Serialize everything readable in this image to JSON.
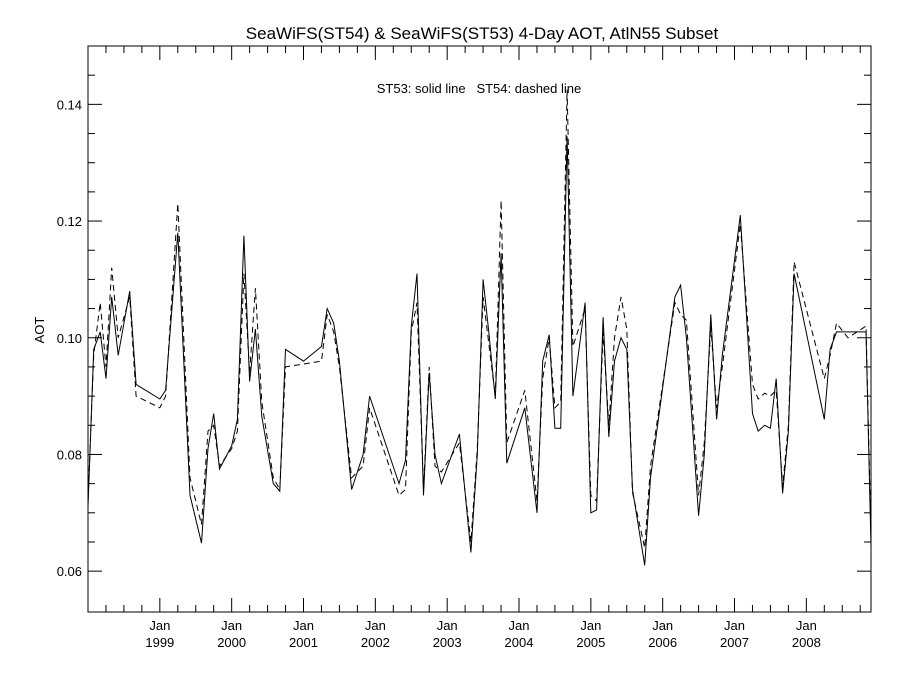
{
  "chart_data": {
    "type": "line",
    "title": "SeaWiFS(ST54) & SeaWiFS(ST53) 4-Day AOT, AtlN55 Subset",
    "xlabel": "",
    "ylabel": "AOT",
    "annotation": "ST53: solid line   ST54: dashed line",
    "xlim": [
      1998.0,
      2008.9
    ],
    "ylim": [
      0.053,
      0.15
    ],
    "y_ticks": [
      0.06,
      0.08,
      0.1,
      0.12,
      0.14
    ],
    "y_tick_labels": [
      "0.06",
      "0.08",
      "0.10",
      "0.12",
      "0.14"
    ],
    "x_ticks": [
      {
        "month": "Jan",
        "year": "1999",
        "x": 1999.0
      },
      {
        "month": "Jan",
        "year": "2000",
        "x": 2000.0
      },
      {
        "month": "Jan",
        "year": "2001",
        "x": 2001.0
      },
      {
        "month": "Jan",
        "year": "2002",
        "x": 2002.0
      },
      {
        "month": "Jan",
        "year": "2003",
        "x": 2003.0
      },
      {
        "month": "Jan",
        "year": "2004",
        "x": 2004.0
      },
      {
        "month": "Jan",
        "year": "2005",
        "x": 2005.0
      },
      {
        "month": "Jan",
        "year": "2006",
        "x": 2006.0
      },
      {
        "month": "Jan",
        "year": "2007",
        "x": 2007.0
      },
      {
        "month": "Jan",
        "year": "2008",
        "x": 2008.0
      }
    ],
    "series": [
      {
        "name": "ST53",
        "style": "solid",
        "x": [
          1998.0,
          1998.08,
          1998.17,
          1998.25,
          1998.33,
          1998.42,
          1998.58,
          1998.67,
          1999.0,
          1999.08,
          1999.25,
          1999.42,
          1999.58,
          1999.67,
          1999.75,
          1999.83,
          2000.0,
          2000.08,
          2000.17,
          2000.25,
          2000.33,
          2000.42,
          2000.58,
          2000.67,
          2000.75,
          2001.0,
          2001.25,
          2001.33,
          2001.42,
          2001.5,
          2001.67,
          2001.83,
          2001.92,
          2002.33,
          2002.42,
          2002.5,
          2002.58,
          2002.67,
          2002.75,
          2002.83,
          2002.92,
          2003.17,
          2003.33,
          2003.42,
          2003.5,
          2003.58,
          2003.67,
          2003.75,
          2003.83,
          2004.08,
          2004.25,
          2004.33,
          2004.42,
          2004.5,
          2004.58,
          2004.67,
          2004.75,
          2004.92,
          2005.0,
          2005.08,
          2005.17,
          2005.25,
          2005.33,
          2005.42,
          2005.5,
          2005.58,
          2005.75,
          2005.83,
          2006.17,
          2006.25,
          2006.33,
          2006.5,
          2006.58,
          2006.67,
          2006.75,
          2006.83,
          2007.08,
          2007.25,
          2007.33,
          2007.42,
          2007.5,
          2007.58,
          2007.67,
          2007.75,
          2007.83,
          2008.25,
          2008.33,
          2008.42,
          2008.58,
          2008.83,
          2008.9
        ],
        "y": [
          0.071,
          0.098,
          0.101,
          0.093,
          0.107,
          0.097,
          0.108,
          0.092,
          0.0895,
          0.091,
          0.118,
          0.073,
          0.0648,
          0.081,
          0.087,
          0.0775,
          0.0815,
          0.086,
          0.1175,
          0.0925,
          0.1015,
          0.0865,
          0.075,
          0.0737,
          0.098,
          0.096,
          0.0985,
          0.105,
          0.1025,
          0.096,
          0.074,
          0.08,
          0.09,
          0.075,
          0.079,
          0.102,
          0.111,
          0.073,
          0.094,
          0.08,
          0.075,
          0.0835,
          0.0632,
          0.08,
          0.11,
          0.101,
          0.0895,
          0.1145,
          0.0785,
          0.088,
          0.07,
          0.096,
          0.1005,
          0.0845,
          0.0845,
          0.1345,
          0.09,
          0.106,
          0.07,
          0.0705,
          0.1035,
          0.083,
          0.096,
          0.1,
          0.098,
          0.074,
          0.061,
          0.076,
          0.107,
          0.109,
          0.1,
          0.0695,
          0.08,
          0.104,
          0.086,
          0.097,
          0.121,
          0.087,
          0.084,
          0.085,
          0.0845,
          0.093,
          0.0733,
          0.084,
          0.111,
          0.086,
          0.098,
          0.101,
          0.101,
          0.101,
          0.064
        ]
      },
      {
        "name": "ST54",
        "style": "dashed",
        "x": [
          1998.0,
          1998.08,
          1998.17,
          1998.25,
          1998.33,
          1998.42,
          1998.58,
          1998.67,
          1999.0,
          1999.08,
          1999.25,
          1999.42,
          1999.58,
          1999.67,
          1999.75,
          1999.83,
          2000.0,
          2000.08,
          2000.17,
          2000.25,
          2000.33,
          2000.42,
          2000.58,
          2000.67,
          2000.75,
          2001.0,
          2001.25,
          2001.33,
          2001.42,
          2001.5,
          2001.67,
          2001.83,
          2001.92,
          2002.33,
          2002.42,
          2002.5,
          2002.58,
          2002.67,
          2002.75,
          2002.83,
          2002.92,
          2003.17,
          2003.33,
          2003.42,
          2003.5,
          2003.58,
          2003.67,
          2003.75,
          2003.83,
          2004.08,
          2004.25,
          2004.33,
          2004.42,
          2004.5,
          2004.58,
          2004.67,
          2004.75,
          2004.92,
          2005.0,
          2005.08,
          2005.17,
          2005.25,
          2005.33,
          2005.42,
          2005.5,
          2005.58,
          2005.75,
          2005.83,
          2006.17,
          2006.25,
          2006.33,
          2006.5,
          2006.58,
          2006.67,
          2006.75,
          2006.83,
          2007.08,
          2007.25,
          2007.33,
          2007.42,
          2007.5,
          2007.58,
          2007.67,
          2007.75,
          2007.83,
          2008.25,
          2008.33,
          2008.42,
          2008.58,
          2008.83,
          2008.9
        ],
        "y": [
          0.072,
          0.097,
          0.106,
          0.095,
          0.112,
          0.1,
          0.107,
          0.09,
          0.088,
          0.09,
          0.123,
          0.076,
          0.068,
          0.084,
          0.085,
          0.078,
          0.081,
          0.084,
          0.111,
          0.094,
          0.1085,
          0.089,
          0.076,
          0.074,
          0.095,
          0.0955,
          0.096,
          0.104,
          0.101,
          0.095,
          0.076,
          0.078,
          0.088,
          0.073,
          0.074,
          0.101,
          0.106,
          0.074,
          0.095,
          0.078,
          0.077,
          0.082,
          0.065,
          0.081,
          0.107,
          0.099,
          0.09,
          0.1235,
          0.082,
          0.091,
          0.072,
          0.093,
          0.1,
          0.088,
          0.089,
          0.1425,
          0.0985,
          0.105,
          0.073,
          0.072,
          0.101,
          0.085,
          0.1,
          0.107,
          0.1015,
          0.0735,
          0.064,
          0.078,
          0.106,
          0.104,
          0.103,
          0.073,
          0.082,
          0.102,
          0.088,
          0.095,
          0.1195,
          0.092,
          0.0895,
          0.0905,
          0.09,
          0.091,
          0.0745,
          0.085,
          0.113,
          0.093,
          0.097,
          0.1025,
          0.1,
          0.102,
          0.066
        ]
      }
    ]
  }
}
